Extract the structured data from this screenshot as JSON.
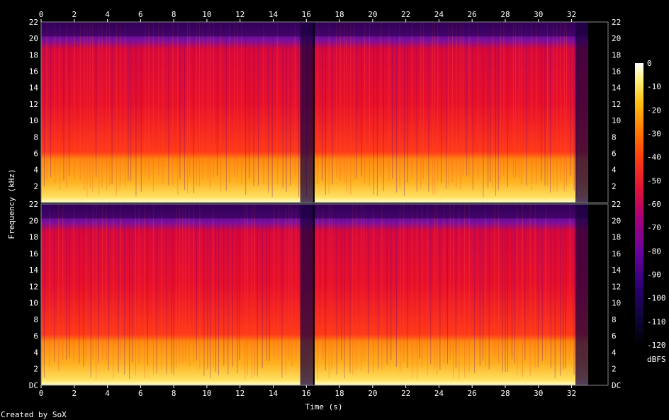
{
  "chart_data": {
    "type": "heatmap",
    "x_ticks": [
      "0",
      "2",
      "4",
      "6",
      "8",
      "10",
      "12",
      "14",
      "16",
      "18",
      "20",
      "22",
      "24",
      "26",
      "28",
      "30",
      "32"
    ],
    "x_range": [
      0,
      34.2
    ],
    "y_ticks": [
      "DC",
      "2",
      "4",
      "6",
      "8",
      "10",
      "12",
      "14",
      "16",
      "18",
      "20",
      "22"
    ],
    "y_range_khz": [
      0,
      22
    ],
    "xlabel": "Time (s)",
    "ylabel": "Frequency (kHz)",
    "channels": 2,
    "colorbar": {
      "label": "dBFS",
      "ticks": [
        "0",
        "-10",
        "-20",
        "-30",
        "-40",
        "-50",
        "-60",
        "-70",
        "-80",
        "-90",
        "-100",
        "-110",
        "-120"
      ],
      "range": [
        -120,
        0
      ]
    },
    "segments": [
      {
        "start_s": 0.0,
        "end_s": 16.4
      },
      {
        "start_s": 16.5,
        "end_s": 33.0
      }
    ],
    "band_levels_dbfs": {
      "below_1khz": -15,
      "1_to_6khz": -35,
      "6_to_20khz": -55,
      "above_20khz": -90
    }
  },
  "footer": {
    "credit": "Created by SoX"
  }
}
